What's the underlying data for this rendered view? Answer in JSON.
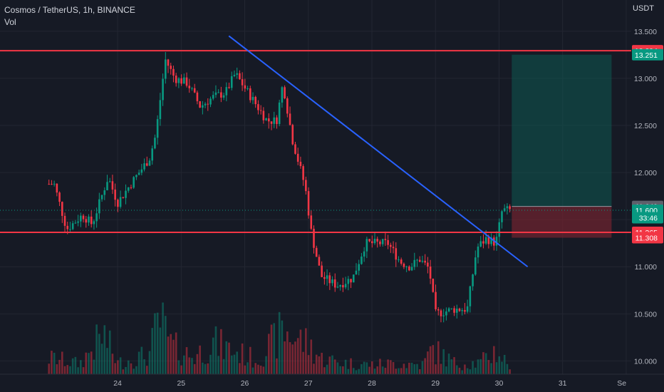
{
  "header": {
    "symbol_line": "Cosmos / TetherUS, 1h, BINANCE",
    "indicator_label": "Vol"
  },
  "chart_data": {
    "type": "candlestick",
    "currency_label": "USDT",
    "y_ticks": [
      "13.500",
      "13.000",
      "12.500",
      "12.000",
      "11.500",
      "11.000",
      "10.500",
      "10.000"
    ],
    "ylim": [
      9.95,
      13.62
    ],
    "x_ticks": [
      "24",
      "25",
      "26",
      "27",
      "28",
      "29",
      "30",
      "31",
      "Se"
    ],
    "resistance_level": 13.294,
    "support_level": 11.365,
    "price_labels": [
      {
        "text": "13.294",
        "value": 13.294,
        "color": "#f23645"
      },
      {
        "text": "13.251",
        "value": 13.251,
        "color": "#089981"
      },
      {
        "text": "11.640",
        "value": 11.64,
        "color": "#5d606b"
      },
      {
        "text": "11.600",
        "value": 11.6,
        "color": "#089981"
      },
      {
        "text": "33:46",
        "value": 11.52,
        "color": "#089981"
      },
      {
        "text": "11.365",
        "value": 11.365,
        "color": "#f23645"
      },
      {
        "text": "11.308",
        "value": 11.308,
        "color": "#f23645"
      }
    ],
    "trendline": {
      "start": [
        25.75,
        13.45
      ],
      "end": [
        30.45,
        11.0
      ],
      "color": "#2962ff"
    },
    "position": {
      "entry": 11.64,
      "target": 13.251,
      "stop": 11.308,
      "x_start": 30.2,
      "x_end": 31.77,
      "profit_color": "#0f5a52",
      "loss_color": "#7a2430"
    },
    "up_color": "#089981",
    "down_color": "#f23645",
    "anchors": [
      [
        23.0,
        11.88
      ],
      [
        23.2,
        11.4
      ],
      [
        23.45,
        11.55
      ],
      [
        23.6,
        11.45
      ],
      [
        23.85,
        11.95
      ],
      [
        24.0,
        11.68
      ],
      [
        24.25,
        11.92
      ],
      [
        24.5,
        12.15
      ],
      [
        24.6,
        12.4
      ],
      [
        24.75,
        13.2
      ],
      [
        24.9,
        13.0
      ],
      [
        25.1,
        12.95
      ],
      [
        25.3,
        12.7
      ],
      [
        25.5,
        12.8
      ],
      [
        25.7,
        12.85
      ],
      [
        25.85,
        13.05
      ],
      [
        26.0,
        12.9
      ],
      [
        26.2,
        12.7
      ],
      [
        26.35,
        12.55
      ],
      [
        26.5,
        12.55
      ],
      [
        26.6,
        12.95
      ],
      [
        26.75,
        12.35
      ],
      [
        26.95,
        11.85
      ],
      [
        27.05,
        11.35
      ],
      [
        27.2,
        10.9
      ],
      [
        27.45,
        10.8
      ],
      [
        27.7,
        10.88
      ],
      [
        27.9,
        11.25
      ],
      [
        28.05,
        11.25
      ],
      [
        28.25,
        11.25
      ],
      [
        28.45,
        11.05
      ],
      [
        28.6,
        11.0
      ],
      [
        28.75,
        11.08
      ],
      [
        28.9,
        10.98
      ],
      [
        29.0,
        10.5
      ],
      [
        29.3,
        10.55
      ],
      [
        29.5,
        10.55
      ],
      [
        29.65,
        11.2
      ],
      [
        29.8,
        11.3
      ],
      [
        29.95,
        11.25
      ],
      [
        30.05,
        11.6
      ],
      [
        30.2,
        11.6
      ]
    ],
    "volume_profile": [
      [
        23.0,
        0.2
      ],
      [
        23.4,
        0.13
      ],
      [
        23.78,
        0.5
      ],
      [
        24.0,
        0.14
      ],
      [
        24.5,
        0.25
      ],
      [
        24.65,
        0.7
      ],
      [
        24.85,
        0.35
      ],
      [
        25.2,
        0.22
      ],
      [
        25.5,
        0.4
      ],
      [
        25.8,
        0.3
      ],
      [
        26.2,
        0.18
      ],
      [
        26.6,
        0.55
      ],
      [
        27.0,
        0.38
      ],
      [
        27.2,
        0.2
      ],
      [
        27.6,
        0.14
      ],
      [
        28.0,
        0.12
      ],
      [
        28.4,
        0.14
      ],
      [
        28.8,
        0.12
      ],
      [
        28.95,
        0.32
      ],
      [
        29.3,
        0.14
      ],
      [
        29.7,
        0.14
      ],
      [
        29.95,
        0.3
      ],
      [
        30.2,
        0.08
      ]
    ],
    "x_range": [
      22.15,
      31.9
    ]
  }
}
